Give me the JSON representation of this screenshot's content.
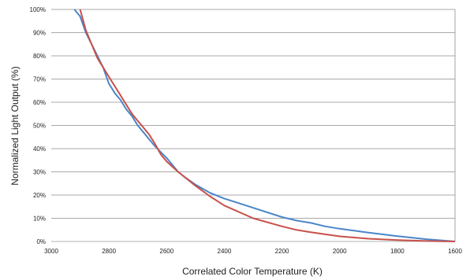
{
  "chart_data": {
    "type": "line",
    "xlabel": "Correlated Color Temperature (K)",
    "ylabel": "Normalized Light Output (%)",
    "xlim": [
      3000,
      1600
    ],
    "ylim": [
      0,
      100
    ],
    "x_ticks": [
      3000,
      2800,
      2600,
      2400,
      2200,
      2000,
      1800,
      1600
    ],
    "x_tick_labels": [
      "3000",
      "2800",
      "2600",
      "2400",
      "2200",
      "2000",
      "1800",
      "1600"
    ],
    "y_ticks": [
      0,
      10,
      20,
      30,
      40,
      50,
      60,
      70,
      80,
      90,
      100
    ],
    "y_tick_labels": [
      "0%",
      "10%",
      "20%",
      "30%",
      "40%",
      "50%",
      "60%",
      "70%",
      "80%",
      "90%",
      "100%"
    ],
    "grid": true,
    "series": [
      {
        "color": "#4a86c8",
        "points": [
          [
            2920,
            100
          ],
          [
            2900,
            97
          ],
          [
            2880,
            90
          ],
          [
            2860,
            85
          ],
          [
            2840,
            80
          ],
          [
            2820,
            75
          ],
          [
            2800,
            68
          ],
          [
            2780,
            64
          ],
          [
            2760,
            61
          ],
          [
            2740,
            57
          ],
          [
            2720,
            54
          ],
          [
            2700,
            50
          ],
          [
            2680,
            47
          ],
          [
            2660,
            44
          ],
          [
            2640,
            41
          ],
          [
            2600,
            36
          ],
          [
            2560,
            30
          ],
          [
            2540,
            28
          ],
          [
            2500,
            24.5
          ],
          [
            2450,
            21
          ],
          [
            2400,
            18.5
          ],
          [
            2300,
            14.5
          ],
          [
            2200,
            10.5
          ],
          [
            2150,
            9
          ],
          [
            2100,
            8
          ],
          [
            2050,
            6.5
          ],
          [
            2000,
            5.5
          ],
          [
            1900,
            3.8
          ],
          [
            1800,
            2.3
          ],
          [
            1700,
            1
          ],
          [
            1600,
            0
          ]
        ]
      },
      {
        "color": "#c8504a",
        "points": [
          [
            2900,
            100
          ],
          [
            2880,
            91
          ],
          [
            2860,
            85
          ],
          [
            2840,
            79
          ],
          [
            2800,
            71
          ],
          [
            2760,
            63
          ],
          [
            2720,
            55
          ],
          [
            2700,
            52
          ],
          [
            2680,
            49
          ],
          [
            2660,
            46
          ],
          [
            2640,
            42
          ],
          [
            2620,
            37.5
          ],
          [
            2600,
            34.5
          ],
          [
            2560,
            30
          ],
          [
            2500,
            24
          ],
          [
            2450,
            19.5
          ],
          [
            2400,
            15.5
          ],
          [
            2300,
            10
          ],
          [
            2200,
            6.5
          ],
          [
            2150,
            5
          ],
          [
            2100,
            4
          ],
          [
            2000,
            2.2
          ],
          [
            1900,
            1.2
          ],
          [
            1800,
            0.6
          ],
          [
            1700,
            0.2
          ],
          [
            1650,
            0.1
          ],
          [
            1600,
            0
          ]
        ]
      }
    ]
  }
}
